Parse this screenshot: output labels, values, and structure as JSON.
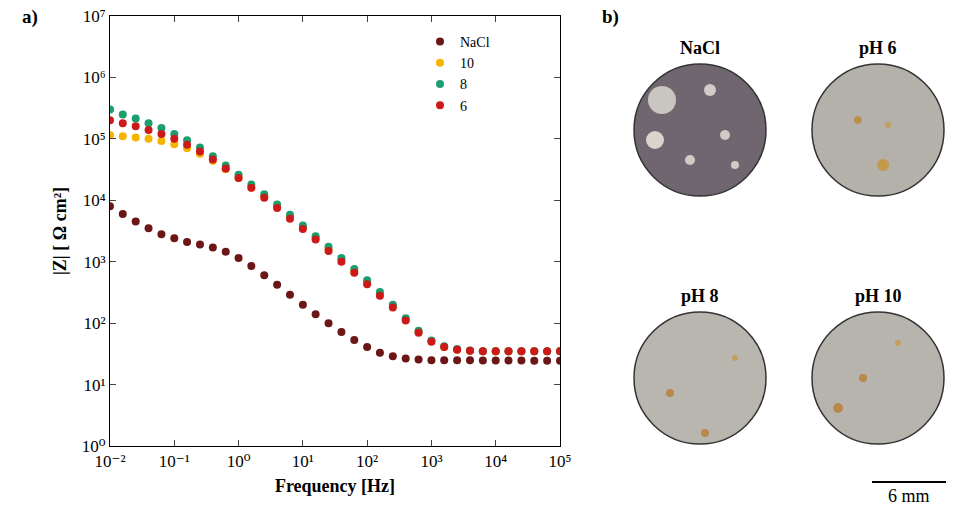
{
  "chart_data": {
    "type": "scatter",
    "panel_label": "a)",
    "xlabel": "Frequency [Hz]",
    "ylabel": "|Z| [ Ω cm²]",
    "log": true,
    "grid": false,
    "legend": "top right",
    "marker": "circle",
    "xlim": [
      0.01,
      100000
    ],
    "ylim": [
      1,
      10000000
    ],
    "xticks": [
      {
        "value": 0.01,
        "label": "10⁻²"
      },
      {
        "value": 0.1,
        "label": "10⁻¹"
      },
      {
        "value": 1,
        "label": "10⁰"
      },
      {
        "value": 10,
        "label": "10¹"
      },
      {
        "value": 100,
        "label": "10²"
      },
      {
        "value": 1000,
        "label": "10³"
      },
      {
        "value": 10000,
        "label": "10⁴"
      },
      {
        "value": 100000,
        "label": "10⁵"
      }
    ],
    "yticks": [
      {
        "value": 1,
        "label": "10⁰"
      },
      {
        "value": 10,
        "label": "10¹"
      },
      {
        "value": 100,
        "label": "10²"
      },
      {
        "value": 1000,
        "label": "10³"
      },
      {
        "value": 10000,
        "label": "10⁴"
      },
      {
        "value": 100000,
        "label": "10⁵"
      },
      {
        "value": 1000000,
        "label": "10⁶"
      },
      {
        "value": 10000000,
        "label": "10⁷"
      }
    ],
    "x": [
      0.01,
      0.0158,
      0.0251,
      0.0398,
      0.0631,
      0.1,
      0.158,
      0.251,
      0.398,
      0.631,
      1,
      1.58,
      2.51,
      3.98,
      6.31,
      10,
      15.8,
      25.1,
      39.8,
      63.1,
      100,
      158,
      251,
      398,
      631,
      1000,
      1580,
      2510,
      3980,
      6310,
      10000,
      15800,
      25100,
      39800,
      63100,
      100000
    ],
    "series": [
      {
        "name": "NaCl",
        "color": "#6b1717",
        "values": [
          8000,
          6000,
          4500,
          3500,
          2800,
          2400,
          2100,
          1900,
          1700,
          1450,
          1150,
          850,
          600,
          420,
          290,
          200,
          140,
          100,
          72,
          53,
          41,
          33,
          29,
          26.5,
          25.5,
          25,
          25,
          24.8,
          24.8,
          24.7,
          24.7,
          24.6,
          24.6,
          24.5,
          24.5,
          24.5
        ]
      },
      {
        "name": "10",
        "color": "#f5b400",
        "values": [
          115000,
          110000,
          105000,
          100000,
          92000,
          82000,
          70000,
          57000,
          44000,
          32000,
          23000,
          16000,
          11500,
          7800,
          5300,
          3600,
          2400,
          1600,
          1080,
          710,
          460,
          300,
          190,
          115,
          72,
          51,
          41,
          37,
          35.5,
          35,
          35,
          35,
          35,
          35,
          35,
          35
        ]
      },
      {
        "name": "8",
        "color": "#1a9e6e",
        "values": [
          300000,
          250000,
          215000,
          180000,
          150000,
          120000,
          95000,
          72000,
          52000,
          37000,
          26000,
          18000,
          12500,
          8500,
          5800,
          3900,
          2600,
          1750,
          1150,
          760,
          500,
          320,
          200,
          120,
          75,
          52,
          42,
          38,
          36,
          35,
          35,
          35,
          35,
          35,
          35,
          35
        ]
      },
      {
        "name": "6",
        "color": "#cc1a1a",
        "values": [
          200000,
          180000,
          160000,
          140000,
          120000,
          100000,
          80000,
          62000,
          46000,
          33000,
          23000,
          16000,
          11000,
          7500,
          5000,
          3400,
          2300,
          1500,
          1000,
          660,
          430,
          280,
          180,
          110,
          70,
          50,
          41,
          37,
          35.5,
          35,
          35,
          35,
          35,
          35,
          35,
          35
        ]
      }
    ]
  },
  "photos": {
    "panel_label": "b)",
    "images": [
      "NaCl",
      "pH 6",
      "pH 8",
      "pH 10"
    ],
    "scale_bar": "6 mm"
  }
}
